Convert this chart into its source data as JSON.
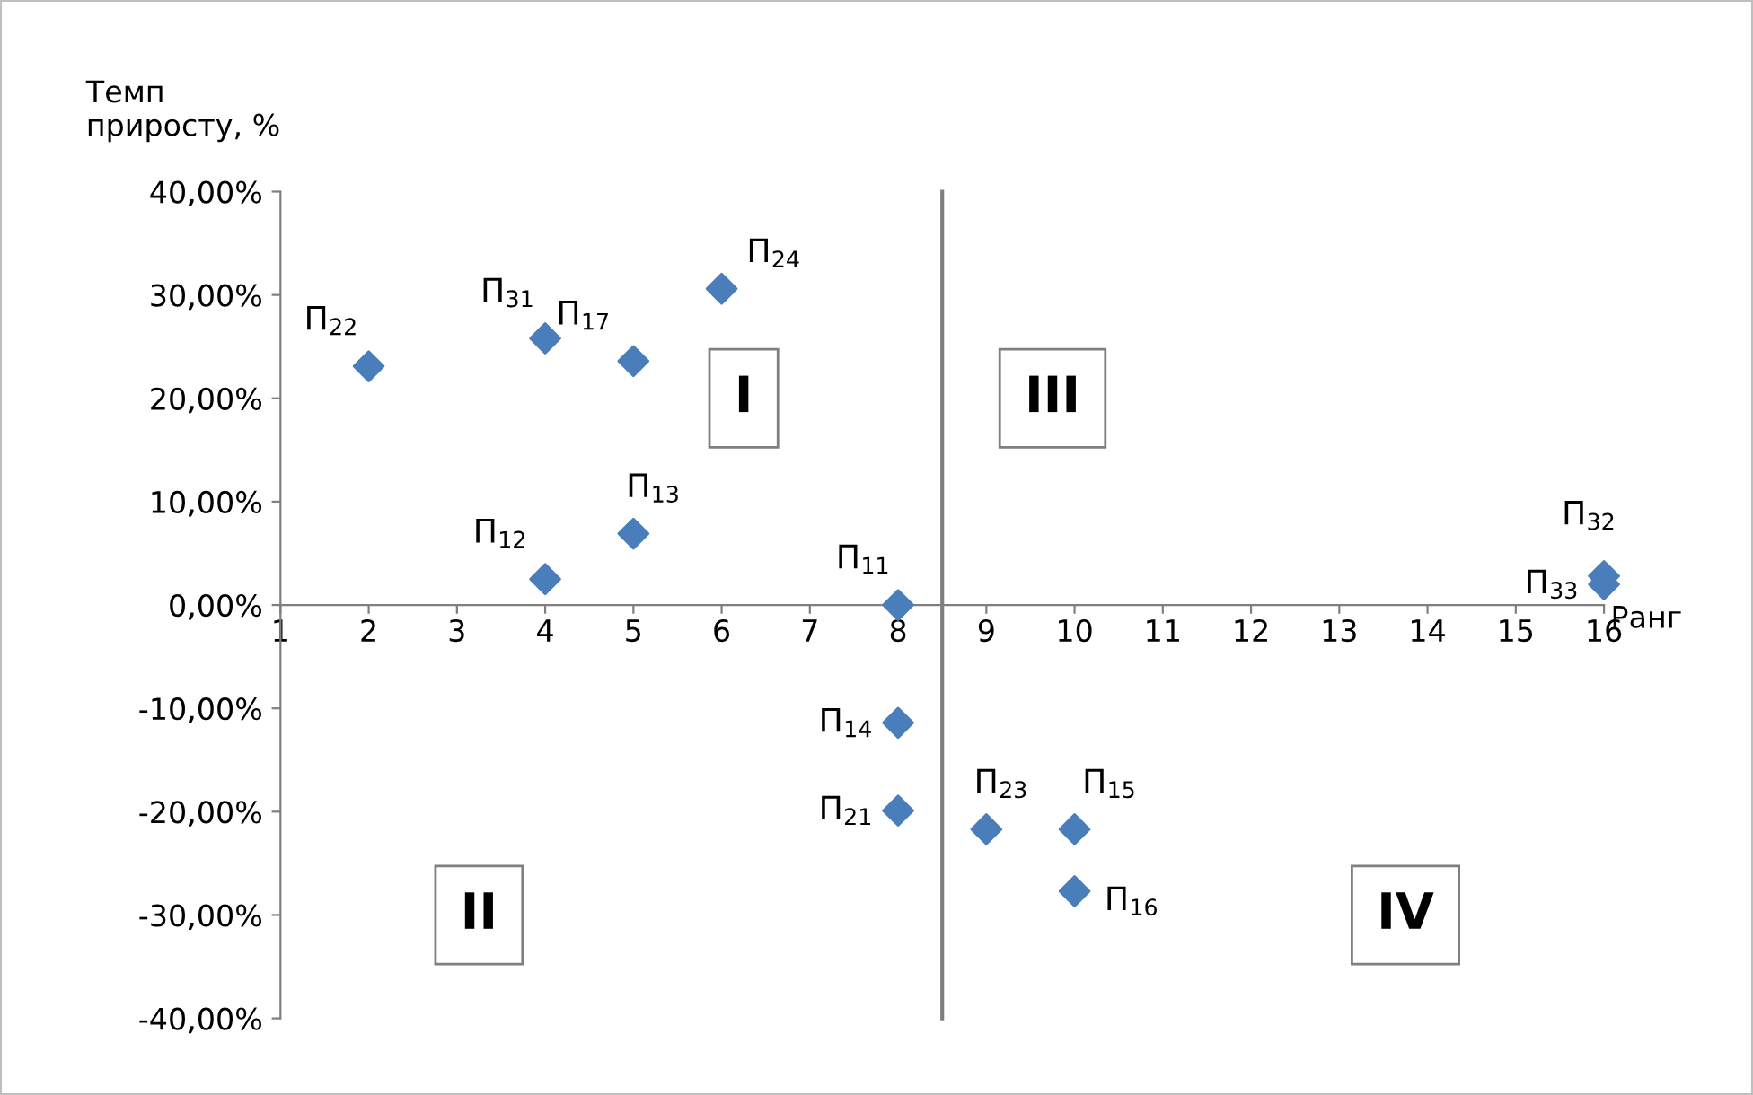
{
  "chart_data": {
    "type": "scatter",
    "xlabel": "Ранг",
    "ylabel": "Темп\nприросту, %",
    "x": [
      2,
      4,
      5,
      6,
      4,
      5,
      8,
      8,
      8,
      9,
      10,
      10,
      16,
      16
    ],
    "series": [
      {
        "color": "#4a7ebb",
        "values": [
          23.1,
          25.8,
          23.6,
          30.6,
          2.5,
          6.9,
          0,
          -11.4,
          -19.9,
          -21.7,
          -21.7,
          -27.7,
          2.8,
          2.0
        ]
      }
    ],
    "marker": "diamond",
    "grid": false,
    "legend": false,
    "xlim": [
      1,
      16
    ],
    "ylim": [
      -40,
      40
    ],
    "xticks": [
      1,
      2,
      3,
      4,
      5,
      6,
      7,
      8,
      9,
      10,
      11,
      12,
      13,
      14,
      15,
      16
    ],
    "yticks": [
      {
        "value": -40,
        "label": "-40,00%"
      },
      {
        "value": -30,
        "label": "-30,00%"
      },
      {
        "value": -20,
        "label": "-20,00%"
      },
      {
        "value": -10,
        "label": "-10,00%"
      },
      {
        "value": 0,
        "label": "0,00%"
      },
      {
        "value": 10,
        "label": "10,00%"
      },
      {
        "value": 20,
        "label": "20,00%"
      },
      {
        "value": 30,
        "label": "30,00%"
      },
      {
        "value": 40,
        "label": "40,00%"
      }
    ],
    "ref_lines": [
      {
        "axis": "x",
        "value": 8.5,
        "color": "#7f7f7f"
      }
    ],
    "annotations": [
      {
        "text": "П$_{22}$",
        "x": 2,
        "y": 23.1
      },
      {
        "text": "П$_{31}$",
        "x": 4,
        "y": 25.8
      },
      {
        "text": "П$_{17}$",
        "x": 5,
        "y": 23.6
      },
      {
        "text": "П$_{24}$",
        "x": 6,
        "y": 30.6
      },
      {
        "text": "П$_{12}$",
        "x": 4,
        "y": 2.5
      },
      {
        "text": "П$_{13}$",
        "x": 5,
        "y": 6.9
      },
      {
        "text": "П$_{11}$",
        "x": 8,
        "y": 0
      },
      {
        "text": "П$_{14}$",
        "x": 8,
        "y": -11.4
      },
      {
        "text": "П$_{21}$",
        "x": 8,
        "y": -19.9
      },
      {
        "text": "П$_{23}$",
        "x": 9,
        "y": -21.7
      },
      {
        "text": "П$_{15}$",
        "x": 10,
        "y": -21.7
      },
      {
        "text": "П$_{16}$",
        "x": 10,
        "y": -27.7
      },
      {
        "text": "П$_{32}$",
        "x": 16,
        "y": 2.8
      },
      {
        "text": "П$_{33}$",
        "x": 16,
        "y": 2.0
      },
      "I",
      "II",
      "III",
      "IV"
    ]
  }
}
